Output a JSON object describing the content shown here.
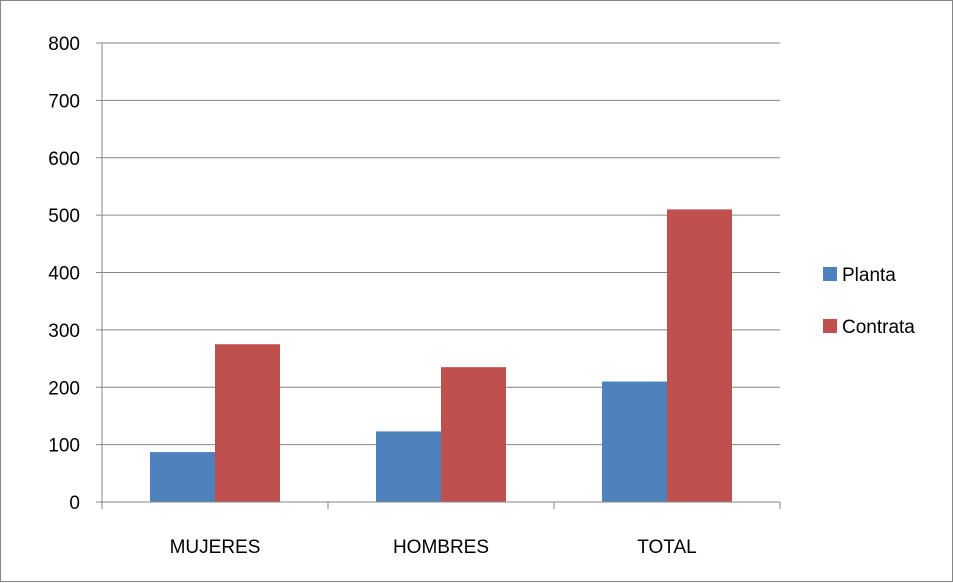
{
  "chart_data": {
    "type": "bar",
    "title": "",
    "xlabel": "",
    "ylabel": "",
    "categories": [
      "MUJERES",
      "HOMBRES",
      "TOTAL"
    ],
    "series": [
      {
        "name": "Planta",
        "values": [
          87,
          123,
          210
        ],
        "color": "#4F81BD"
      },
      {
        "name": "Contrata",
        "values": [
          275,
          235,
          510
        ],
        "color": "#C0504D"
      }
    ],
    "ylim": [
      0,
      800
    ],
    "yticks": [
      0,
      100,
      200,
      300,
      400,
      500,
      600,
      700,
      800
    ],
    "grid": true,
    "legend_position": "right"
  }
}
